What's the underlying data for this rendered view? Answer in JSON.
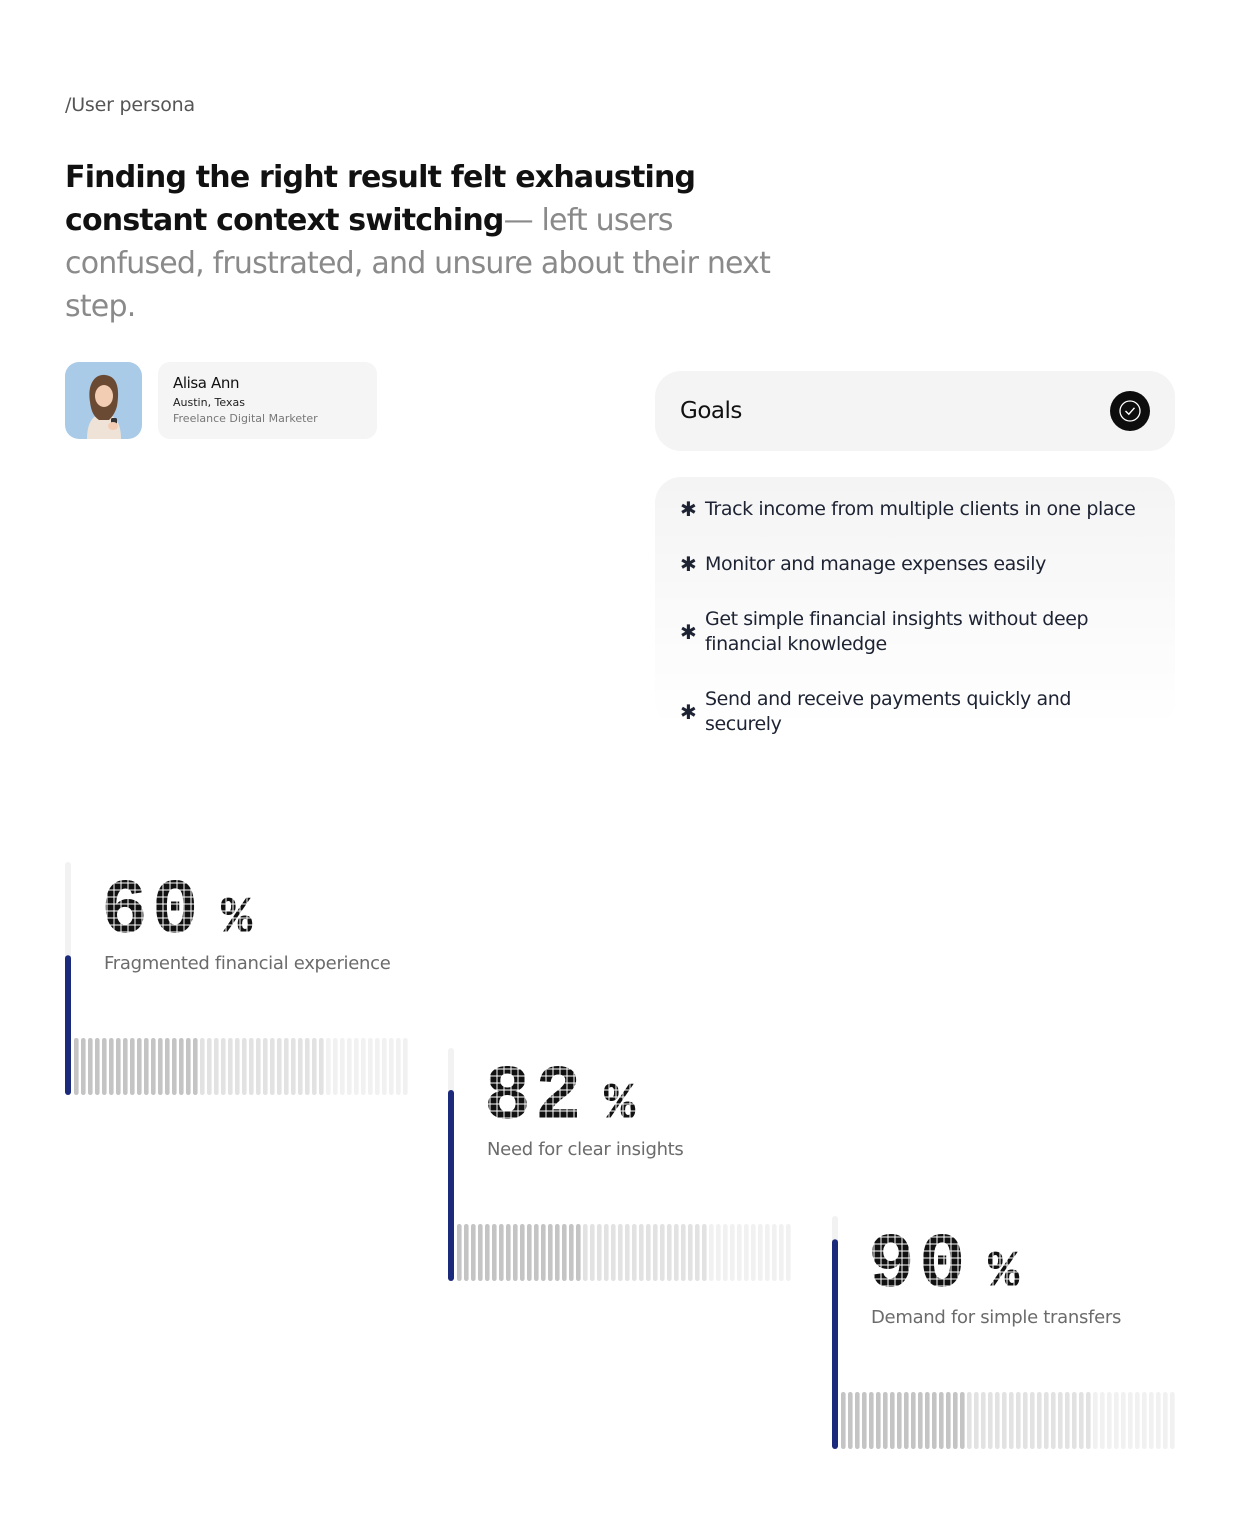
{
  "section_label": "/User persona",
  "headline": {
    "strong": "Finding the right result felt exhausting constant context switching",
    "light": "— left users confused, frustrated, and unsure about their next step."
  },
  "persona": {
    "name": "Alisa Ann",
    "location": "Austin, Texas",
    "role": "Freelance Digital Marketer"
  },
  "goals": {
    "title": "Goals",
    "items": [
      "Track income from multiple clients in one place",
      "Monitor and manage expenses easily",
      "Get simple financial insights without deep financial knowledge",
      "Send and receive payments quickly and securely"
    ]
  },
  "stats": [
    {
      "value": 60,
      "unit": "%",
      "caption": "Fragmented financial experience"
    },
    {
      "value": 82,
      "unit": "%",
      "caption": "Need for clear insights"
    },
    {
      "value": 90,
      "unit": "%",
      "caption": "Demand for simple transfers"
    }
  ]
}
